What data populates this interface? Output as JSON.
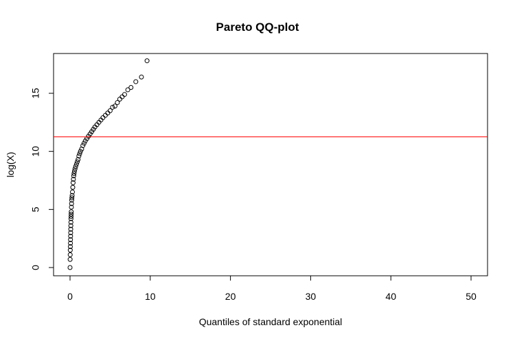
{
  "chart_data": {
    "type": "scatter",
    "title": "Pareto QQ-plot",
    "xlabel": "Quantiles of standard exponential",
    "ylabel": "log(X)",
    "xlim": [
      0,
      52
    ],
    "ylim": [
      0,
      18
    ],
    "x_ticks": [
      0,
      10,
      20,
      30,
      40,
      50
    ],
    "y_ticks": [
      0,
      5,
      10,
      15
    ],
    "grid": false,
    "reference_line": {
      "y": 11.25,
      "color": "#ff0000"
    },
    "point_color": "#000000",
    "points": [
      [
        0.0,
        0.0
      ],
      [
        0.01,
        0.7
      ],
      [
        0.02,
        1.1
      ],
      [
        0.03,
        1.5
      ],
      [
        0.04,
        1.8
      ],
      [
        0.05,
        2.1
      ],
      [
        0.06,
        2.4
      ],
      [
        0.07,
        2.7
      ],
      [
        0.08,
        3.0
      ],
      [
        0.09,
        3.3
      ],
      [
        0.1,
        3.6
      ],
      [
        0.11,
        3.9
      ],
      [
        0.12,
        4.2
      ],
      [
        0.13,
        4.4
      ],
      [
        0.14,
        4.6
      ],
      [
        0.15,
        4.8
      ],
      [
        0.17,
        5.2
      ],
      [
        0.19,
        5.5
      ],
      [
        0.21,
        5.8
      ],
      [
        0.23,
        6.0
      ],
      [
        0.26,
        6.2
      ],
      [
        0.3,
        6.5
      ],
      [
        0.34,
        6.9
      ],
      [
        0.38,
        7.3
      ],
      [
        0.42,
        7.6
      ],
      [
        0.46,
        7.9
      ],
      [
        0.5,
        8.1
      ],
      [
        0.55,
        8.3
      ],
      [
        0.62,
        8.5
      ],
      [
        0.7,
        8.7
      ],
      [
        0.8,
        8.9
      ],
      [
        0.9,
        9.1
      ],
      [
        1.0,
        9.3
      ],
      [
        1.1,
        9.6
      ],
      [
        1.2,
        9.8
      ],
      [
        1.3,
        10.0
      ],
      [
        1.45,
        10.2
      ],
      [
        1.6,
        10.5
      ],
      [
        1.75,
        10.7
      ],
      [
        1.9,
        10.9
      ],
      [
        2.1,
        11.1
      ],
      [
        2.3,
        11.3
      ],
      [
        2.5,
        11.5
      ],
      [
        2.7,
        11.7
      ],
      [
        2.9,
        11.9
      ],
      [
        3.1,
        12.1
      ],
      [
        3.35,
        12.3
      ],
      [
        3.6,
        12.5
      ],
      [
        3.85,
        12.7
      ],
      [
        4.1,
        12.9
      ],
      [
        4.4,
        13.1
      ],
      [
        4.7,
        13.3
      ],
      [
        5.0,
        13.5
      ],
      [
        5.3,
        13.8
      ],
      [
        5.6,
        13.9
      ],
      [
        5.9,
        14.2
      ],
      [
        6.2,
        14.5
      ],
      [
        6.5,
        14.7
      ],
      [
        6.8,
        14.9
      ],
      [
        7.2,
        15.3
      ],
      [
        7.6,
        15.5
      ],
      [
        8.2,
        16.0
      ],
      [
        8.9,
        16.4
      ],
      [
        9.6,
        17.8
      ]
    ]
  }
}
